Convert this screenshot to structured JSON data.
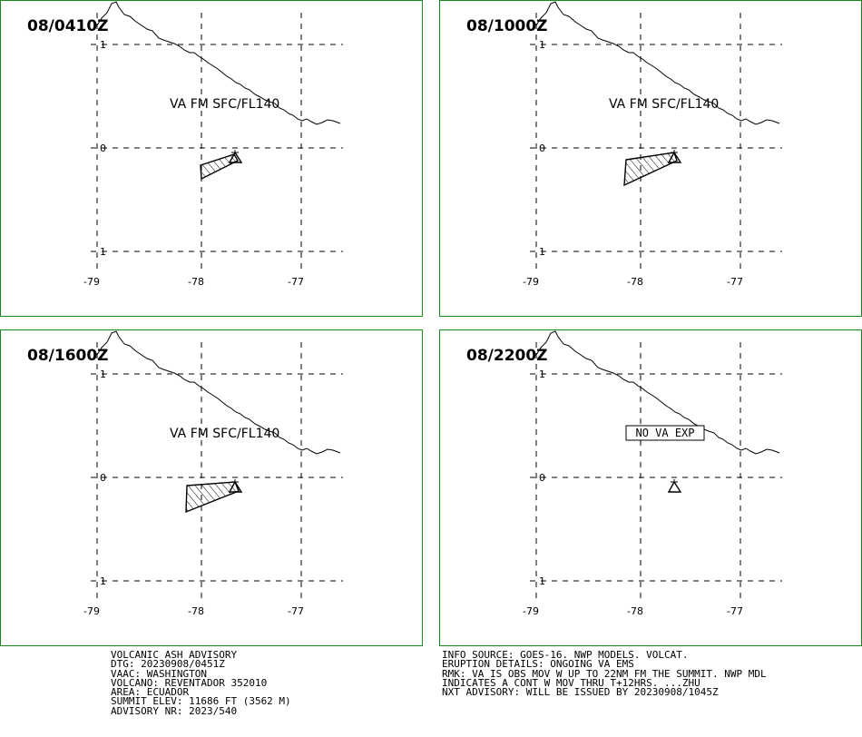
{
  "panels": [
    {
      "time": "08/0410Z",
      "va_label": "VA FM SFC/FL140",
      "ash": "small"
    },
    {
      "time": "08/1000Z",
      "va_label": "VA FM SFC/FL140",
      "ash": "medium"
    },
    {
      "time": "08/1600Z",
      "va_label": "VA FM SFC/FL140",
      "ash": "large"
    },
    {
      "time": "08/2200Z",
      "va_label": "NO VA EXP",
      "ash": "none"
    }
  ],
  "latitude_labels": [
    "1",
    "0",
    "1"
  ],
  "longitude_labels": [
    "-79",
    "-78",
    "-77"
  ],
  "colors": {
    "frame": "#1a8a1a",
    "lines": "#000000",
    "background": "#ffffff"
  },
  "icons": {
    "volcano": "triangle-volcano-icon"
  },
  "advisory_left": [
    "VOLCANIC ASH ADVISORY",
    "DTG: 20230908/0451Z",
    "VAAC: WASHINGTON",
    "VOLCANO: REVENTADOR 352010",
    "AREA: ECUADOR",
    "SUMMIT ELEV: 11686 FT (3562 M)",
    "ADVISORY NR: 2023/540"
  ],
  "advisory_right": [
    "INFO SOURCE: GOES-16. NWP MODELS. VOLCAT.",
    "ERUPTION DETAILS: ONGOING VA EMS",
    "RMK: VA IS OBS MOV W UP TO 22NM FM THE SUMMIT. NWP MDL",
    "INDICATES A CONT W MOV THRU T+12HRS. ...ZHU",
    "NXT ADVISORY: WILL BE ISSUED BY 20230908/1045Z"
  ]
}
